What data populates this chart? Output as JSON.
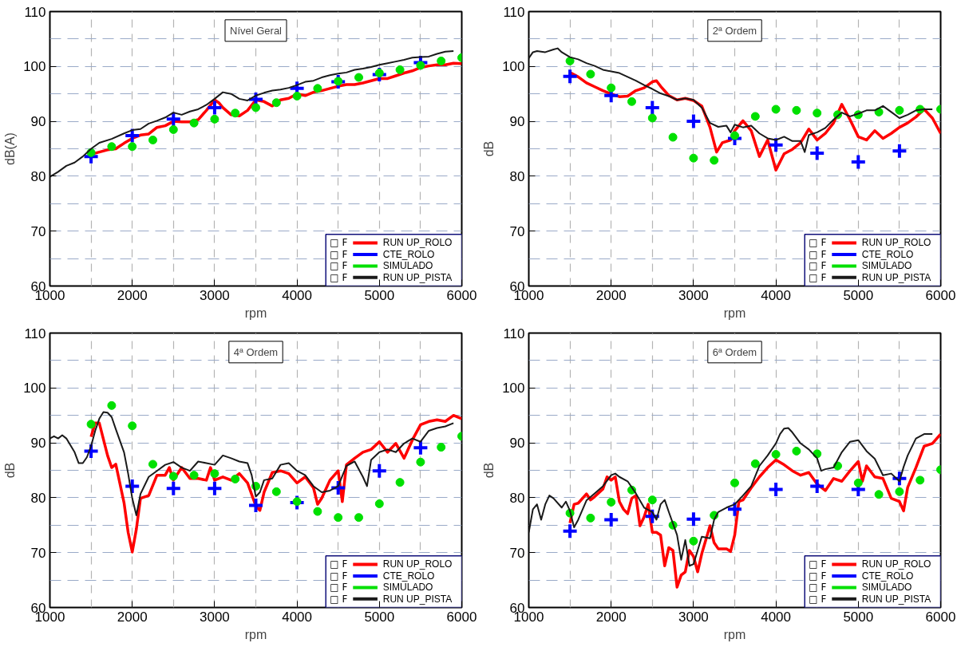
{
  "chart_data": [
    {
      "type": "line",
      "title": "Nível Geral",
      "xlabel": "rpm",
      "ylabel": "dB(A)",
      "xlim": [
        1000,
        6000
      ],
      "ylim": [
        60,
        110
      ],
      "xticks": [
        1000,
        2000,
        3000,
        4000,
        5000,
        6000
      ],
      "yticks": [
        60,
        70,
        80,
        90,
        100,
        110
      ],
      "grid": true,
      "legend": "bottom right",
      "annotations": [
        "□ F",
        "□ F",
        "□ F",
        "□ F"
      ],
      "series": [
        {
          "name": "RUN UP_ROLO",
          "color": "#ff0000",
          "x": [
            1500,
            1600,
            1700,
            1800,
            1850,
            1900,
            2000,
            2100,
            2200,
            2300,
            2400,
            2500,
            2600,
            2700,
            2800,
            2900,
            3000,
            3050,
            3100,
            3200,
            3300,
            3400,
            3500,
            3600,
            3700,
            3800,
            3900,
            4000,
            4100,
            4200,
            4300,
            4400,
            4500,
            4600,
            4700,
            4800,
            4900,
            5000,
            5100,
            5200,
            5300,
            5400,
            5500,
            5600,
            5700,
            5800,
            5900,
            6000
          ],
          "values": [
            84.0,
            84.4,
            84.8,
            85.0,
            85.5,
            86.0,
            86.9,
            87.5,
            87.7,
            88.9,
            89.2,
            90.0,
            89.9,
            89.9,
            90.3,
            92.0,
            93.9,
            93.4,
            92.5,
            91.2,
            91.0,
            92.0,
            93.9,
            93.6,
            92.8,
            93.9,
            94.2,
            95.0,
            94.7,
            95.3,
            95.6,
            96.0,
            96.4,
            96.7,
            96.7,
            97.0,
            97.4,
            97.8,
            97.8,
            98.3,
            98.8,
            99.2,
            99.8,
            100.1,
            100.3,
            100.3,
            100.6,
            100.5
          ]
        },
        {
          "name": "CTE_ROLO",
          "type": "scatter",
          "marker": "cross",
          "color": "#0000ff",
          "x": [
            1500,
            2000,
            2500,
            3000,
            3500,
            4000,
            4500,
            5000,
            5500
          ],
          "values": [
            83.6,
            87.4,
            90.4,
            92.5,
            94.0,
            96.0,
            97.2,
            98.5,
            100.7
          ]
        },
        {
          "name": "SIMULADO",
          "type": "scatter",
          "marker": "circle",
          "color": "#00e000",
          "x": [
            1500,
            1750,
            2000,
            2250,
            2500,
            2750,
            3000,
            3250,
            3500,
            3750,
            4000,
            4250,
            4500,
            4750,
            5000,
            5250,
            5500,
            5750,
            6000
          ],
          "values": [
            84.3,
            85.4,
            85.4,
            86.6,
            88.5,
            89.7,
            90.4,
            91.5,
            92.5,
            93.4,
            94.6,
            96.0,
            97.3,
            98.0,
            98.8,
            99.4,
            100.2,
            101.0,
            101.6
          ]
        },
        {
          "name": "RUN UP_PISTA",
          "color": "#1a1a1a",
          "x": [
            1000,
            1100,
            1200,
            1300,
            1400,
            1500,
            1600,
            1750,
            1900,
            2000,
            2100,
            2200,
            2300,
            2400,
            2500,
            2600,
            2700,
            2800,
            2900,
            3000,
            3100,
            3200,
            3300,
            3400,
            3500,
            3600,
            3700,
            3800,
            3900,
            4000,
            4100,
            4200,
            4300,
            4400,
            4500,
            4600,
            4700,
            4800,
            4900,
            5000,
            5100,
            5200,
            5300,
            5400,
            5500,
            5600,
            5700,
            5800,
            5900
          ],
          "values": [
            79.9,
            80.8,
            81.9,
            82.5,
            83.6,
            85.0,
            86.1,
            86.8,
            87.8,
            88.4,
            88.6,
            89.6,
            90.1,
            90.7,
            91.6,
            91.2,
            91.8,
            92.2,
            93.0,
            94.1,
            95.3,
            95.0,
            94.1,
            93.8,
            94.7,
            95.2,
            95.6,
            95.8,
            96.1,
            96.6,
            97.2,
            97.4,
            98.0,
            98.4,
            98.7,
            98.9,
            99.4,
            99.6,
            99.9,
            100.3,
            100.6,
            100.9,
            101.2,
            101.6,
            101.7,
            101.8,
            102.3,
            102.7,
            102.8
          ]
        }
      ]
    },
    {
      "type": "line",
      "title": "2ª Ordem",
      "xlabel": "rpm",
      "ylabel": "dB",
      "xlim": [
        1000,
        6000
      ],
      "ylim": [
        60,
        110
      ],
      "xticks": [
        1000,
        2000,
        3000,
        4000,
        5000,
        6000
      ],
      "yticks": [
        60,
        70,
        80,
        90,
        100,
        110
      ],
      "grid": true,
      "legend": "bottom right",
      "annotations": [
        "□ F",
        "□ F",
        "□ F",
        "□ F"
      ],
      "series": [
        {
          "name": "RUN UP_ROLO",
          "color": "#ff0000",
          "x": [
            1500,
            1600,
            1700,
            1800,
            1900,
            2000,
            2100,
            2200,
            2300,
            2400,
            2500,
            2550,
            2600,
            2700,
            2800,
            2900,
            3000,
            3100,
            3200,
            3280,
            3350,
            3450,
            3500,
            3600,
            3700,
            3800,
            3900,
            4000,
            4100,
            4200,
            4300,
            4400,
            4500,
            4600,
            4700,
            4800,
            4900,
            5000,
            5100,
            5200,
            5300,
            5400,
            5500,
            5600,
            5700,
            5800,
            5900,
            6000
          ],
          "values": [
            98.9,
            98.1,
            97.0,
            96.3,
            95.6,
            95.0,
            94.5,
            94.6,
            95.6,
            96.1,
            97.2,
            97.4,
            96.4,
            94.7,
            93.9,
            94.2,
            93.8,
            92.8,
            88.9,
            84.4,
            86.1,
            86.6,
            88.3,
            90.1,
            88.3,
            83.6,
            86.6,
            81.1,
            84.1,
            84.9,
            86.1,
            88.6,
            86.6,
            87.8,
            89.7,
            93.1,
            90.3,
            87.2,
            86.6,
            88.3,
            86.9,
            87.8,
            88.9,
            89.7,
            90.8,
            92.2,
            90.6,
            87.8
          ]
        },
        {
          "name": "CTE_ROLO",
          "type": "scatter",
          "marker": "cross",
          "color": "#0000ff",
          "x": [
            1500,
            2000,
            2500,
            3000,
            3500,
            4000,
            4500,
            5000,
            5500
          ],
          "values": [
            98.2,
            94.7,
            92.5,
            90.0,
            86.9,
            85.7,
            84.2,
            82.6,
            84.6
          ]
        },
        {
          "name": "SIMULADO",
          "type": "scatter",
          "marker": "circle",
          "color": "#00e000",
          "x": [
            1500,
            1750,
            2000,
            2250,
            2500,
            2750,
            3000,
            3250,
            3500,
            3750,
            4000,
            4250,
            4500,
            4750,
            5000,
            5250,
            5500,
            5750,
            6000
          ],
          "values": [
            101.0,
            98.6,
            96.1,
            93.6,
            90.6,
            87.1,
            83.3,
            82.9,
            87.4,
            90.9,
            92.2,
            92.0,
            91.5,
            91.2,
            91.2,
            91.7,
            92.0,
            92.2,
            92.2
          ]
        },
        {
          "name": "RUN UP_PISTA",
          "color": "#1a1a1a",
          "x": [
            1000,
            1050,
            1100,
            1200,
            1300,
            1350,
            1400,
            1500,
            1600,
            1700,
            1800,
            1900,
            2000,
            2100,
            2200,
            2300,
            2400,
            2500,
            2600,
            2700,
            2800,
            2900,
            3000,
            3100,
            3200,
            3300,
            3400,
            3450,
            3500,
            3600,
            3700,
            3800,
            3900,
            4000,
            4100,
            4200,
            4300,
            4350,
            4400,
            4500,
            4600,
            4700,
            4800,
            4900,
            5000,
            5100,
            5200,
            5300,
            5400,
            5500,
            5600,
            5700,
            5800,
            5900
          ],
          "values": [
            101.5,
            102.6,
            102.8,
            102.6,
            103.1,
            103.3,
            102.6,
            101.7,
            101.3,
            100.6,
            100.1,
            99.4,
            99.1,
            98.8,
            98.1,
            97.4,
            96.6,
            95.9,
            95.1,
            94.6,
            93.9,
            94.2,
            93.9,
            92.5,
            89.7,
            89.0,
            89.2,
            88.0,
            89.4,
            88.9,
            89.2,
            87.8,
            86.9,
            86.6,
            87.2,
            86.4,
            86.4,
            84.4,
            87.5,
            88.0,
            88.8,
            90.3,
            91.6,
            90.9,
            91.4,
            92.0,
            92.0,
            92.8,
            91.7,
            90.6,
            91.2,
            92.0,
            92.2,
            92.2
          ]
        }
      ]
    },
    {
      "type": "line",
      "title": "4ª Ordem",
      "xlabel": "rpm",
      "ylabel": "dB",
      "xlim": [
        1000,
        6000
      ],
      "ylim": [
        60,
        110
      ],
      "xticks": [
        1000,
        2000,
        3000,
        4000,
        5000,
        6000
      ],
      "yticks": [
        60,
        70,
        80,
        90,
        100,
        110
      ],
      "grid": true,
      "legend": "bottom right",
      "annotations": [
        "□ F",
        "□ F",
        "□ F",
        "□ F"
      ],
      "series": [
        {
          "name": "RUN UP_ROLO",
          "color": "#ff0000",
          "x": [
            1500,
            1550,
            1600,
            1700,
            1750,
            1800,
            1900,
            1950,
            2000,
            2050,
            2100,
            2200,
            2300,
            2400,
            2450,
            2500,
            2600,
            2700,
            2800,
            2900,
            2950,
            3000,
            3100,
            3200,
            3300,
            3400,
            3500,
            3550,
            3600,
            3700,
            3800,
            3900,
            4000,
            4100,
            4200,
            4250,
            4300,
            4400,
            4500,
            4550,
            4600,
            4700,
            4800,
            4900,
            5000,
            5100,
            5200,
            5300,
            5400,
            5500,
            5600,
            5700,
            5800,
            5900,
            6000
          ],
          "values": [
            91.1,
            93.6,
            93.6,
            87.7,
            85.5,
            86.1,
            79.1,
            73.7,
            70.1,
            74.3,
            79.9,
            80.4,
            84.1,
            84.1,
            85.5,
            83.2,
            85.5,
            83.5,
            83.5,
            83.2,
            85.5,
            83.2,
            83.8,
            83.2,
            84.4,
            82.7,
            78.5,
            77.7,
            81.0,
            84.6,
            84.9,
            84.4,
            82.7,
            83.8,
            81.8,
            78.8,
            79.9,
            83.2,
            84.9,
            79.3,
            86.0,
            87.2,
            88.3,
            88.8,
            90.2,
            88.3,
            89.9,
            87.2,
            90.5,
            93.3,
            93.9,
            94.2,
            93.9,
            95.0,
            94.4
          ]
        },
        {
          "name": "CTE_ROLO",
          "type": "scatter",
          "marker": "cross",
          "color": "#0000ff",
          "x": [
            1500,
            2000,
            2500,
            3000,
            3500,
            4000,
            4500,
            5000,
            5500
          ],
          "values": [
            88.5,
            82.1,
            81.7,
            81.7,
            78.6,
            79.1,
            81.8,
            84.9,
            89.1
          ]
        },
        {
          "name": "SIMULADO",
          "type": "scatter",
          "marker": "circle",
          "color": "#00e000",
          "x": [
            1500,
            1750,
            2000,
            2250,
            2500,
            2750,
            3000,
            3250,
            3500,
            3750,
            4000,
            4250,
            4500,
            4750,
            5000,
            5250,
            5500,
            5750,
            6000
          ],
          "values": [
            93.4,
            96.8,
            93.1,
            86.1,
            83.9,
            84.1,
            84.4,
            83.4,
            82.1,
            81.1,
            79.3,
            77.5,
            76.4,
            76.4,
            78.9,
            82.8,
            86.5,
            89.2,
            91.2
          ]
        },
        {
          "name": "RUN UP_PISTA",
          "color": "#1a1a1a",
          "x": [
            1000,
            1050,
            1100,
            1150,
            1200,
            1300,
            1350,
            1400,
            1450,
            1500,
            1550,
            1600,
            1650,
            1700,
            1750,
            1800,
            1900,
            1950,
            2000,
            2050,
            2100,
            2200,
            2300,
            2400,
            2500,
            2600,
            2700,
            2800,
            2900,
            3000,
            3100,
            3200,
            3300,
            3400,
            3450,
            3500,
            3550,
            3600,
            3700,
            3800,
            3900,
            4000,
            4100,
            4200,
            4300,
            4400,
            4500,
            4600,
            4700,
            4800,
            4850,
            4900,
            5000,
            5100,
            5200,
            5300,
            5400,
            5500,
            5600,
            5700,
            5800,
            5900
          ],
          "values": [
            90.8,
            91.2,
            90.8,
            91.4,
            90.8,
            88.3,
            86.3,
            86.3,
            87.4,
            89.4,
            92.2,
            94.4,
            95.6,
            95.5,
            94.7,
            92.5,
            88.3,
            84.4,
            79.9,
            76.8,
            80.7,
            83.8,
            84.9,
            86.0,
            86.5,
            85.5,
            84.9,
            86.6,
            86.3,
            86.0,
            87.7,
            87.2,
            86.6,
            86.3,
            84.1,
            80.2,
            81.0,
            83.2,
            83.5,
            86.0,
            86.3,
            84.9,
            84.1,
            82.1,
            81.0,
            81.3,
            82.1,
            85.8,
            86.6,
            83.8,
            82.1,
            86.9,
            88.3,
            88.8,
            88.3,
            89.9,
            90.8,
            90.2,
            92.2,
            92.7,
            93.0,
            93.6
          ]
        }
      ]
    },
    {
      "type": "line",
      "title": "6ª Ordem",
      "xlabel": "rpm",
      "ylabel": "dB",
      "xlim": [
        1000,
        6000
      ],
      "ylim": [
        60,
        110
      ],
      "xticks": [
        1000,
        2000,
        3000,
        4000,
        5000,
        6000
      ],
      "yticks": [
        60,
        70,
        80,
        90,
        100,
        110
      ],
      "grid": true,
      "legend": "bottom right",
      "annotations": [
        "□ F",
        "□ F",
        "□ F",
        "□ F"
      ],
      "series": [
        {
          "name": "RUN UP_ROLO",
          "color": "#ff0000",
          "x": [
            1500,
            1550,
            1600,
            1700,
            1750,
            1800,
            1900,
            1950,
            2000,
            2050,
            2100,
            2150,
            2200,
            2250,
            2300,
            2350,
            2400,
            2450,
            2500,
            2550,
            2600,
            2650,
            2700,
            2750,
            2800,
            2850,
            2900,
            2950,
            3000,
            3050,
            3100,
            3200,
            3250,
            3300,
            3400,
            3450,
            3500,
            3550,
            3600,
            3700,
            3800,
            3900,
            4000,
            4100,
            4200,
            4300,
            4400,
            4500,
            4600,
            4700,
            4800,
            4900,
            5000,
            5050,
            5100,
            5200,
            5300,
            5400,
            5500,
            5550,
            5600,
            5700,
            5800,
            5900,
            6000
          ],
          "values": [
            75.4,
            78.8,
            79.0,
            80.7,
            79.6,
            80.2,
            81.6,
            83.8,
            83.2,
            83.8,
            79.3,
            77.9,
            77.1,
            79.9,
            80.4,
            74.9,
            76.5,
            78.8,
            73.7,
            73.7,
            73.2,
            67.6,
            70.9,
            70.4,
            63.7,
            65.9,
            66.5,
            70.4,
            69.3,
            66.5,
            69.8,
            74.9,
            71.8,
            70.7,
            70.7,
            70.2,
            73.2,
            79.3,
            79.6,
            81.8,
            83.8,
            85.5,
            86.9,
            86.0,
            84.9,
            84.1,
            84.6,
            82.5,
            81.3,
            83.5,
            83.0,
            84.9,
            86.6,
            83.0,
            85.8,
            83.8,
            83.5,
            79.9,
            79.3,
            77.6,
            81.9,
            85.5,
            89.4,
            89.9,
            91.6
          ]
        },
        {
          "name": "CTE_ROLO",
          "type": "scatter",
          "marker": "cross",
          "color": "#0000ff",
          "x": [
            1500,
            2000,
            2500,
            3000,
            3500,
            4000,
            4500,
            5000,
            5500
          ],
          "values": [
            73.9,
            76.0,
            76.6,
            76.1,
            77.9,
            81.5,
            82.1,
            81.5,
            83.5
          ]
        },
        {
          "name": "SIMULADO",
          "type": "scatter",
          "marker": "circle",
          "color": "#00e000",
          "x": [
            1500,
            1750,
            2000,
            2250,
            2500,
            2750,
            3000,
            3250,
            3500,
            3750,
            4000,
            4250,
            4500,
            4750,
            5000,
            5250,
            5500,
            5750,
            6000
          ],
          "values": [
            77.2,
            76.3,
            79.2,
            81.4,
            79.6,
            75.0,
            72.1,
            76.8,
            82.7,
            86.2,
            87.9,
            88.5,
            88.0,
            85.8,
            82.7,
            80.6,
            81.1,
            83.2,
            85.1
          ]
        },
        {
          "name": "RUN UP_PISTA",
          "color": "#1a1a1a",
          "x": [
            1000,
            1050,
            1100,
            1150,
            1200,
            1250,
            1300,
            1400,
            1450,
            1500,
            1550,
            1600,
            1700,
            1800,
            1900,
            2000,
            2050,
            2100,
            2200,
            2300,
            2400,
            2500,
            2550,
            2600,
            2650,
            2700,
            2800,
            2850,
            2900,
            2950,
            3000,
            3050,
            3100,
            3200,
            3250,
            3300,
            3400,
            3500,
            3600,
            3700,
            3800,
            3900,
            4000,
            4050,
            4100,
            4150,
            4200,
            4300,
            4400,
            4500,
            4550,
            4600,
            4700,
            4800,
            4900,
            5000,
            5100,
            5200,
            5300,
            5400,
            5500,
            5550,
            5600,
            5700,
            5800,
            5900
          ],
          "values": [
            73.7,
            77.9,
            78.8,
            76.0,
            78.8,
            80.4,
            79.9,
            78.2,
            79.3,
            77.6,
            74.6,
            76.0,
            79.5,
            80.8,
            82.1,
            84.1,
            84.4,
            83.8,
            83.0,
            80.8,
            78.2,
            77.4,
            76.0,
            78.8,
            79.6,
            77.4,
            73.2,
            68.7,
            72.3,
            67.6,
            67.9,
            70.4,
            72.9,
            72.6,
            76.0,
            77.4,
            78.2,
            78.8,
            80.4,
            82.1,
            85.8,
            87.7,
            89.9,
            91.6,
            92.6,
            92.7,
            91.9,
            89.9,
            88.8,
            87.2,
            84.9,
            85.2,
            85.5,
            88.3,
            90.2,
            90.5,
            88.5,
            87.1,
            84.1,
            84.4,
            83.0,
            85.6,
            87.7,
            90.8,
            91.6,
            91.6
          ]
        }
      ]
    }
  ]
}
